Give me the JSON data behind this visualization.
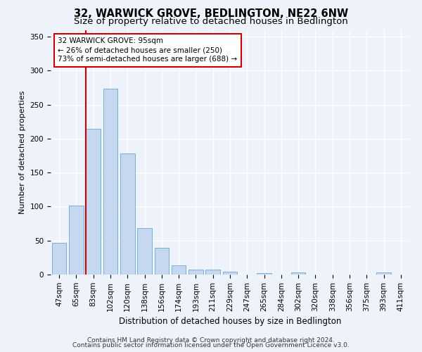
{
  "title": "32, WARWICK GROVE, BEDLINGTON, NE22 6NW",
  "subtitle": "Size of property relative to detached houses in Bedlington",
  "xlabel": "Distribution of detached houses by size in Bedlington",
  "ylabel": "Number of detached properties",
  "bar_color": "#c5d8f0",
  "bar_edge_color": "#7bafd4",
  "background_color": "#eef2fb",
  "grid_color": "#ffffff",
  "categories": [
    "47sqm",
    "65sqm",
    "83sqm",
    "102sqm",
    "120sqm",
    "138sqm",
    "156sqm",
    "174sqm",
    "193sqm",
    "211sqm",
    "229sqm",
    "247sqm",
    "265sqm",
    "284sqm",
    "302sqm",
    "320sqm",
    "338sqm",
    "356sqm",
    "375sqm",
    "393sqm",
    "411sqm"
  ],
  "values": [
    47,
    102,
    214,
    274,
    178,
    68,
    39,
    13,
    7,
    7,
    4,
    0,
    2,
    0,
    3,
    0,
    0,
    0,
    0,
    3,
    0
  ],
  "ylim": [
    0,
    360
  ],
  "yticks": [
    0,
    50,
    100,
    150,
    200,
    250,
    300,
    350
  ],
  "annotation_title": "32 WARWICK GROVE: 95sqm",
  "annotation_line1": "← 26% of detached houses are smaller (250)",
  "annotation_line2": "73% of semi-detached houses are larger (688) →",
  "annotation_box_color": "#ffffff",
  "annotation_border_color": "#cc0000",
  "property_line_color": "#cc0000",
  "property_line_xindex": 2,
  "footer_line1": "Contains HM Land Registry data © Crown copyright and database right 2024.",
  "footer_line2": "Contains public sector information licensed under the Open Government Licence v3.0.",
  "title_fontsize": 10.5,
  "subtitle_fontsize": 9.5,
  "xlabel_fontsize": 8.5,
  "ylabel_fontsize": 8,
  "tick_fontsize": 7.5,
  "annotation_fontsize": 7.5,
  "footer_fontsize": 6.5
}
